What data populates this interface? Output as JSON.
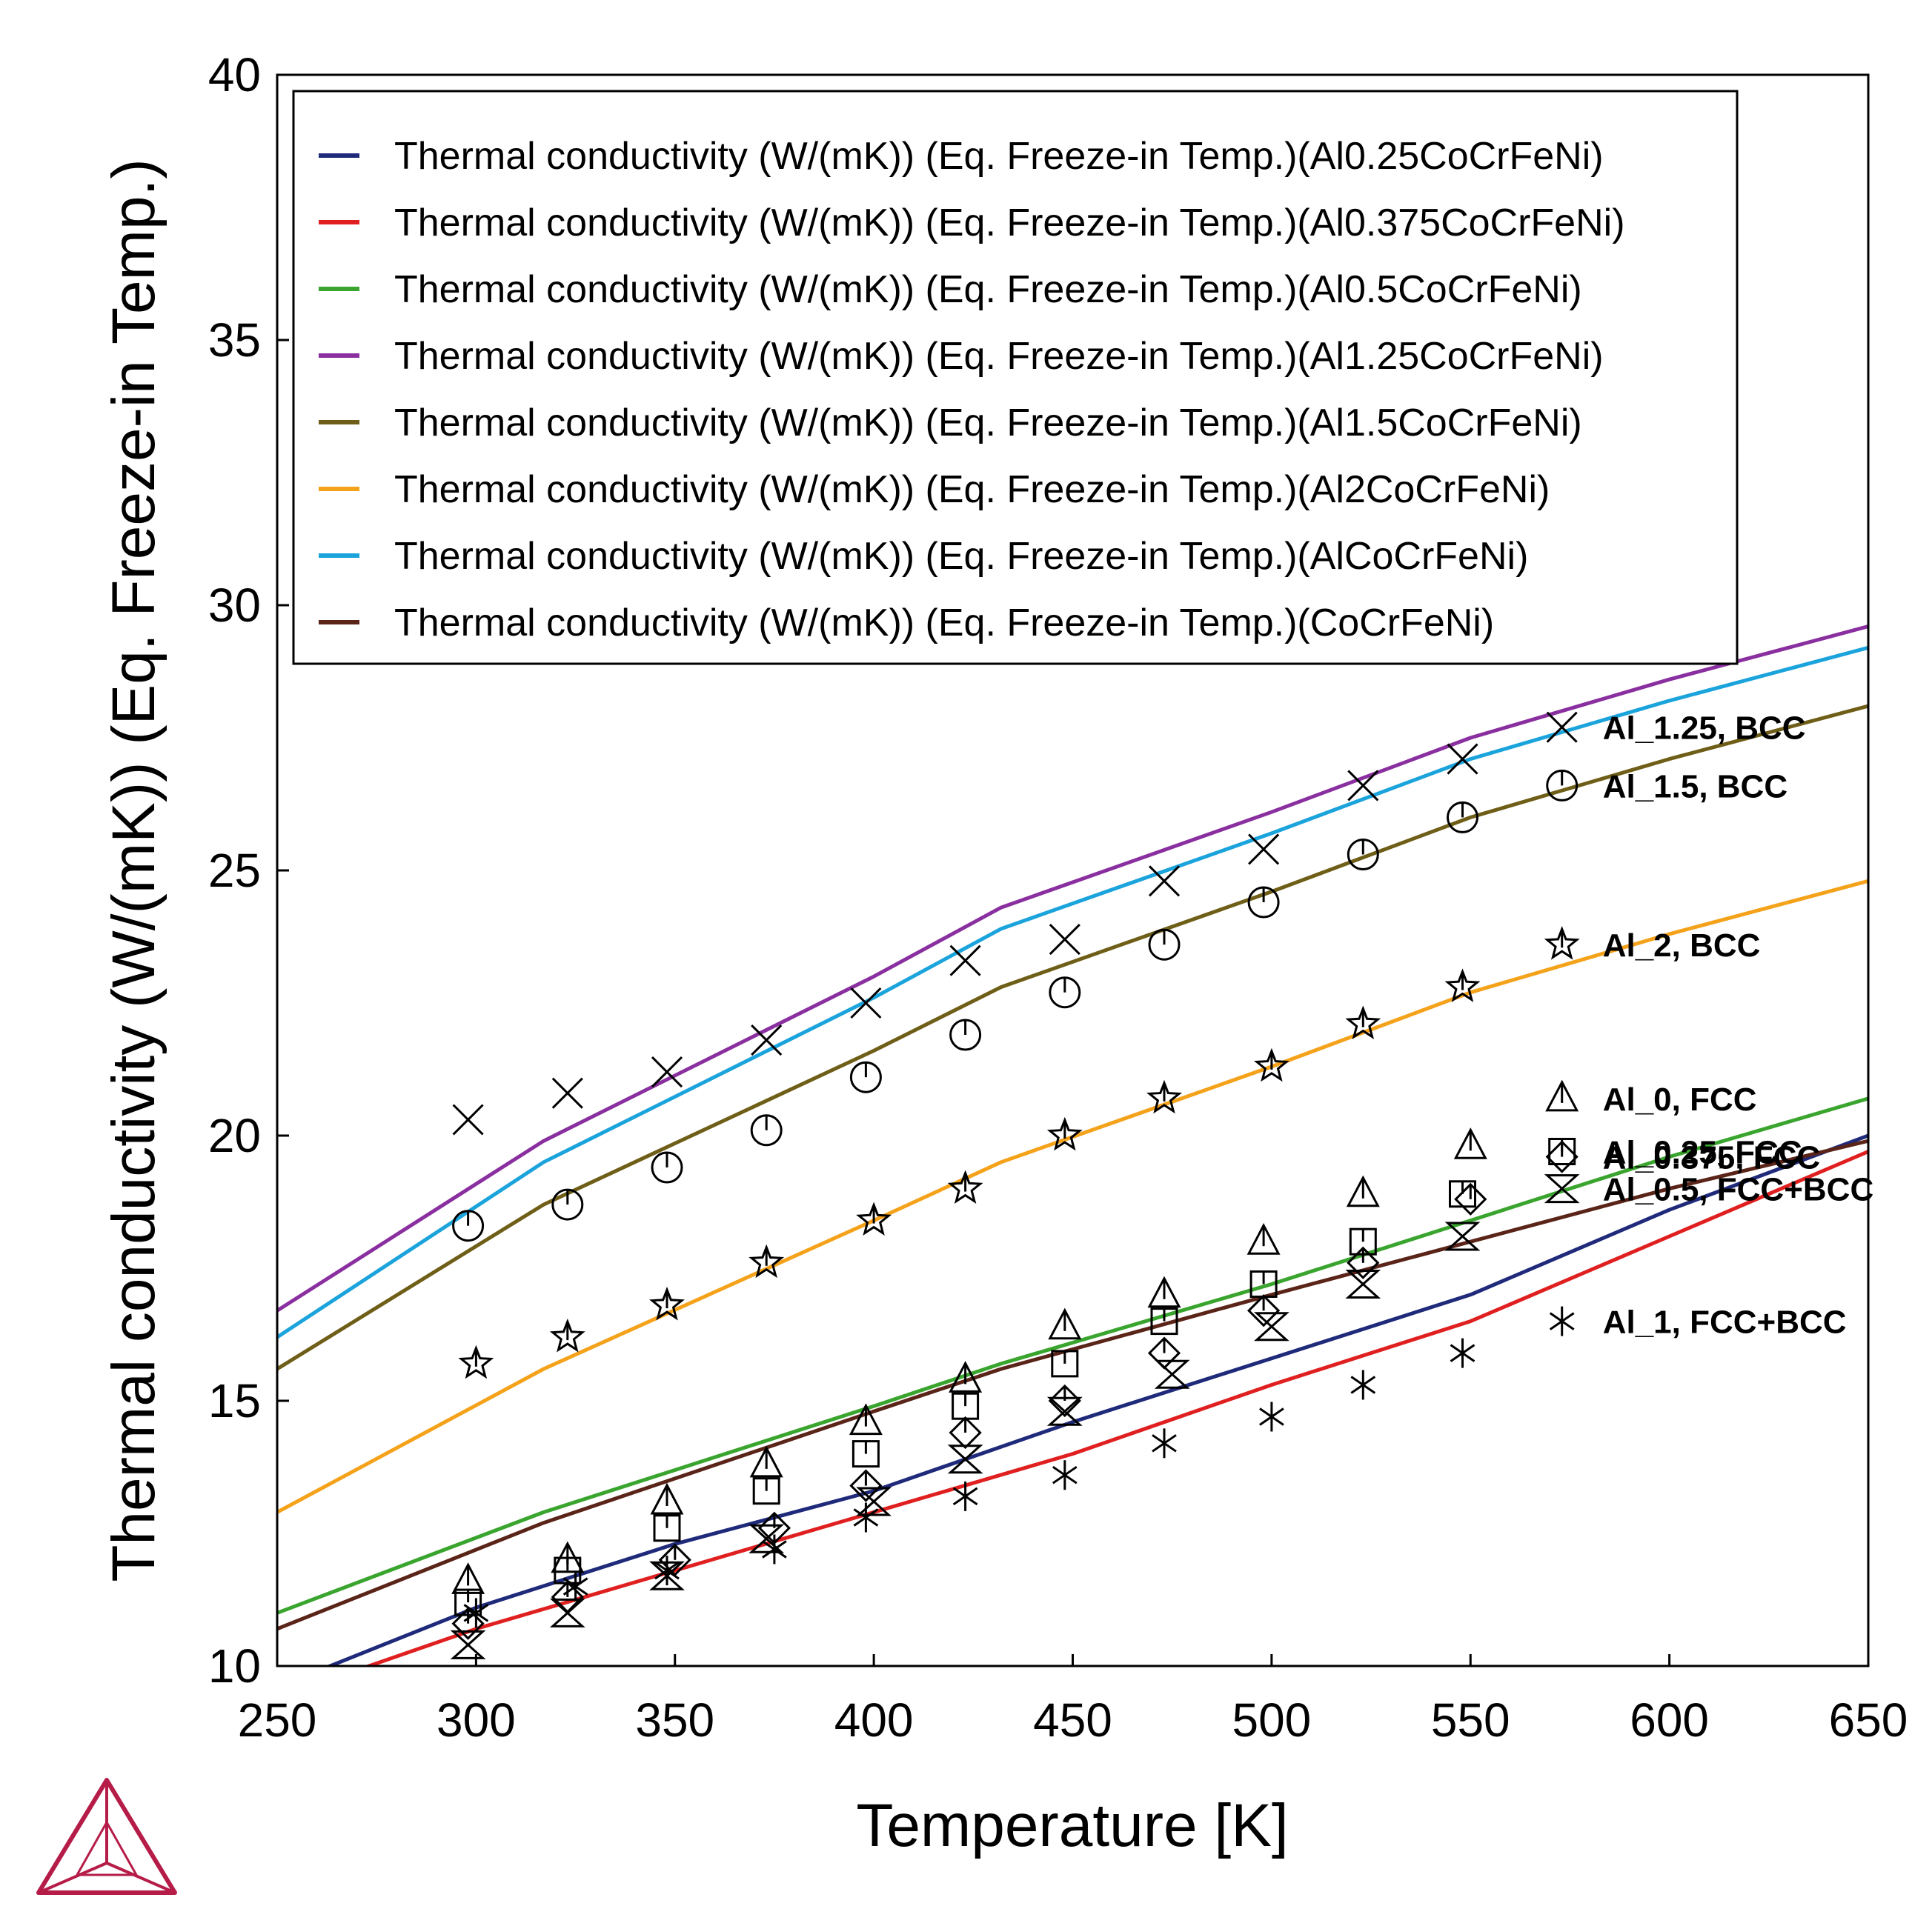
{
  "chart_data": {
    "type": "line",
    "xlabel": "Temperature [K]",
    "ylabel": "Thermal conductivity (W/(mK)) (Eq. Freeze-in Temp.)",
    "xlim": [
      250,
      650
    ],
    "ylim": [
      10,
      40
    ],
    "xticks": [
      "250",
      "300",
      "350",
      "400",
      "450",
      "500",
      "550",
      "600",
      "650"
    ],
    "yticks": [
      "10",
      "15",
      "20",
      "25",
      "30",
      "35",
      "40"
    ],
    "grid": false,
    "legend_position": "top-left",
    "series": [
      {
        "name": "Thermal conductivity (W/(mK)) (Eq. Freeze-in Temp.)(Al0.25CoCrFeNi)",
        "color": "#1f2a7a",
        "x": [
          250,
          300,
          350,
          400,
          450,
          500,
          550,
          600,
          650
        ],
        "y": [
          9.6,
          11.1,
          12.3,
          13.3,
          14.6,
          15.8,
          17.0,
          18.6,
          20.0
        ]
      },
      {
        "name": "Thermal conductivity (W/(mK)) (Eq. Freeze-in Temp.)(Al0.375CoCrFeNi)",
        "color": "#e02020",
        "x": [
          250,
          300,
          350,
          400,
          450,
          500,
          550,
          600,
          650
        ],
        "y": [
          9.4,
          10.7,
          11.8,
          12.9,
          14.0,
          15.3,
          16.5,
          18.1,
          19.7
        ]
      },
      {
        "name": "Thermal conductivity (W/(mK)) (Eq. Freeze-in Temp.)(Al0.5CoCrFeNi)",
        "color": "#3aa52e",
        "x": [
          250,
          317,
          400,
          432,
          500,
          550,
          600,
          650
        ],
        "y": [
          11.0,
          12.9,
          14.9,
          15.7,
          17.2,
          18.4,
          19.6,
          20.7
        ]
      },
      {
        "name": "Thermal conductivity (W/(mK)) (Eq. Freeze-in Temp.)(Al1.25CoCrFeNi)",
        "color": "#8a2f9f",
        "x": [
          250,
          317,
          400,
          432,
          500,
          550,
          600,
          650
        ],
        "y": [
          16.7,
          19.9,
          23.0,
          24.3,
          26.1,
          27.5,
          28.6,
          29.6
        ]
      },
      {
        "name": "Thermal conductivity (W/(mK)) (Eq. Freeze-in Temp.)(Al1.5CoCrFeNi)",
        "color": "#6e5e17",
        "x": [
          250,
          317,
          400,
          432,
          500,
          550,
          600,
          650
        ],
        "y": [
          15.6,
          18.7,
          21.6,
          22.8,
          24.6,
          26.0,
          27.1,
          28.1
        ]
      },
      {
        "name": "Thermal conductivity (W/(mK)) (Eq. Freeze-in Temp.)(Al2CoCrFeNi)",
        "color": "#f5a21b",
        "x": [
          250,
          317,
          400,
          432,
          500,
          550,
          600,
          650
        ],
        "y": [
          12.9,
          15.6,
          18.4,
          19.5,
          21.3,
          22.7,
          23.8,
          24.8
        ]
      },
      {
        "name": "Thermal conductivity (W/(mK)) (Eq. Freeze-in Temp.)(AlCoCrFeNi)",
        "color": "#1ba3dc",
        "x": [
          250,
          317,
          400,
          432,
          500,
          550,
          600,
          650
        ],
        "y": [
          16.2,
          19.5,
          22.6,
          23.9,
          25.7,
          27.1,
          28.2,
          29.2
        ]
      },
      {
        "name": "Thermal conductivity (W/(mK)) (Eq. Freeze-in Temp.)(CoCrFeNi)",
        "color": "#5a2418",
        "x": [
          250,
          317,
          400,
          432,
          500,
          550,
          600,
          650
        ],
        "y": [
          10.7,
          12.7,
          14.8,
          15.6,
          17.0,
          18.0,
          19.0,
          19.9
        ]
      }
    ],
    "markers": [
      {
        "label": "Al_1.25, BCC",
        "symbol": "x",
        "x": [
          298,
          323,
          348,
          373,
          398,
          423,
          448,
          473,
          498,
          523,
          548
        ],
        "y": [
          20.3,
          20.8,
          21.2,
          21.8,
          22.5,
          23.3,
          23.7,
          24.8,
          25.4,
          26.6,
          27.1
        ]
      },
      {
        "label": "Al_1.5, BCC",
        "symbol": "circle-tick",
        "x": [
          298,
          323,
          348,
          373,
          398,
          423,
          448,
          473,
          498,
          523,
          548
        ],
        "y": [
          18.3,
          18.7,
          19.4,
          20.1,
          21.1,
          21.9,
          22.7,
          23.6,
          24.4,
          25.3,
          26.0
        ]
      },
      {
        "label": "Al_2, BCC",
        "symbol": "star",
        "x": [
          300,
          323,
          348,
          373,
          400,
          423,
          448,
          473,
          500,
          523,
          548
        ],
        "y": [
          15.7,
          16.2,
          16.8,
          17.6,
          18.4,
          19.0,
          20.0,
          20.7,
          21.3,
          22.1,
          22.8
        ]
      },
      {
        "label": "Al_0, FCC",
        "symbol": "triangle-tick",
        "x": [
          298,
          323,
          348,
          373,
          398,
          423,
          448,
          473,
          498,
          523,
          550
        ],
        "y": [
          11.6,
          12.0,
          13.1,
          13.8,
          14.6,
          15.4,
          16.4,
          17.0,
          18.0,
          18.9,
          19.8
        ]
      },
      {
        "label": "Al_0.25, FCC",
        "symbol": "square-tick",
        "x": [
          298,
          323,
          348,
          373,
          398,
          423,
          448,
          473,
          498,
          523,
          548
        ],
        "y": [
          11.2,
          11.8,
          12.6,
          13.3,
          14.0,
          14.9,
          15.7,
          16.5,
          17.2,
          18.0,
          18.9
        ]
      },
      {
        "label": "Al_0.375, FCC",
        "symbol": "diamond-tick",
        "x": [
          298,
          323,
          350,
          375,
          398,
          423,
          448,
          473,
          498,
          523,
          550
        ],
        "y": [
          10.8,
          11.3,
          12.0,
          12.6,
          13.4,
          14.4,
          15.0,
          15.9,
          16.7,
          17.6,
          18.8
        ]
      },
      {
        "label": "Al_0.5, FCC+BCC",
        "symbol": "hourglass",
        "x": [
          298,
          323,
          348,
          373,
          400,
          423,
          448,
          475,
          500,
          523,
          548
        ],
        "y": [
          10.4,
          11.0,
          11.7,
          12.4,
          13.1,
          13.9,
          14.8,
          15.5,
          16.4,
          17.2,
          18.1
        ]
      },
      {
        "label": "Al_1, FCC+BCC",
        "symbol": "asterisk",
        "x": [
          300,
          325,
          348,
          375,
          398,
          423,
          448,
          473,
          500,
          523,
          548
        ],
        "y": [
          11.0,
          11.5,
          11.8,
          12.2,
          12.8,
          13.2,
          13.6,
          14.2,
          14.7,
          15.3,
          15.9
        ]
      }
    ],
    "annotations": [
      {
        "text": "Al_1.25, BCC",
        "symbol": "x",
        "x": 573,
        "y": 27.7
      },
      {
        "text": "Al_1.5, BCC",
        "symbol": "circle-tick",
        "x": 573,
        "y": 26.6
      },
      {
        "text": "Al_2, BCC",
        "symbol": "star",
        "x": 573,
        "y": 23.6
      },
      {
        "text": "Al_0, FCC",
        "symbol": "triangle-tick",
        "x": 573,
        "y": 20.7
      },
      {
        "text": "Al_0.25, FCC",
        "symbol": "square-tick",
        "x": 573,
        "y": 19.7
      },
      {
        "text": "Al_0.375, FCC",
        "symbol": "diamond-tick",
        "x": 573,
        "y": 19.6
      },
      {
        "text": "Al_0.5, FCC+BCC",
        "symbol": "hourglass",
        "x": 573,
        "y": 19.0
      },
      {
        "text": "Al_1, FCC+BCC",
        "symbol": "asterisk",
        "x": 573,
        "y": 16.5
      }
    ]
  },
  "logo": {
    "name": "thermo-calc-triangle-logo",
    "color": "#b51c48"
  }
}
